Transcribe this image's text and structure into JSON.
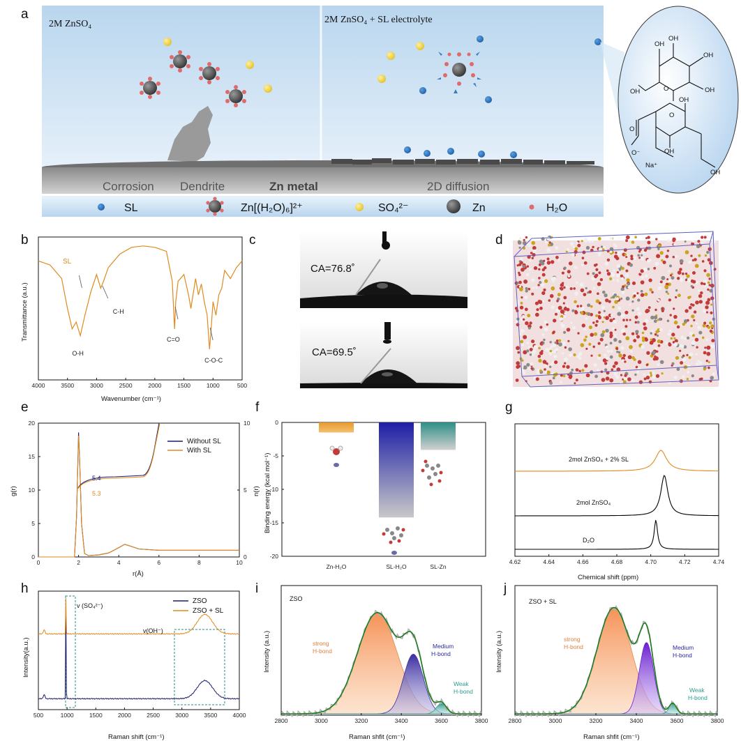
{
  "panel_labels": {
    "a": "a",
    "b": "b",
    "c": "c",
    "d": "d",
    "e": "e",
    "f": "f",
    "g": "g",
    "h": "h",
    "i": "i",
    "j": "j"
  },
  "panel_a": {
    "left_title": "2M ZnSO₄",
    "right_title": "2M ZnSO₄ +  SL electrolyte",
    "labels": {
      "corrosion": "Corrosion",
      "dendrite": "Dendrite",
      "zn_metal": "Zn metal",
      "diffusion": "2D diffusion"
    },
    "legend": [
      {
        "label": "SL",
        "icon": "sl-molecule"
      },
      {
        "label": "Zn[(H₂O)₆]²⁺",
        "icon": "hydrated-zinc"
      },
      {
        "label": "SO₄²⁻",
        "icon": "sulfate-ion"
      },
      {
        "label": "Zn",
        "icon": "zinc-ion"
      },
      {
        "label": "H₂O",
        "icon": "water-molecule"
      }
    ],
    "structure_labels": {
      "oh1": "OH",
      "oh2": "OH",
      "oh3": "OH",
      "oh4": "OH",
      "oh5": "OH",
      "oh6": "OH",
      "oh7": "OH",
      "oh8": "OH",
      "o_ring1": "O",
      "o_ring2": "O",
      "o_minus": "O⁻",
      "o_carbonyl": "O",
      "na": "Na⁺"
    }
  },
  "chart_data": [
    {
      "id": "b",
      "type": "line",
      "title": "",
      "legend": [
        "SL"
      ],
      "xlabel": "Wavenumber (cm⁻¹)",
      "ylabel": "Transmittance (a.u.)",
      "xlim": [
        4000,
        500
      ],
      "xticks": [
        4000,
        3500,
        3000,
        2500,
        2000,
        1500,
        1000,
        500
      ],
      "series": [
        {
          "name": "SL",
          "x": [
            4000,
            3800,
            3600,
            3500,
            3420,
            3350,
            3280,
            3200,
            3100,
            3000,
            2930,
            2880,
            2800,
            2600,
            2400,
            2200,
            2000,
            1800,
            1700,
            1660,
            1640,
            1600,
            1500,
            1420,
            1380,
            1300,
            1250,
            1200,
            1150,
            1100,
            1060,
            1040,
            1000,
            950,
            900,
            850,
            800,
            700,
            600,
            500
          ],
          "y": [
            0.85,
            0.82,
            0.72,
            0.5,
            0.35,
            0.4,
            0.3,
            0.45,
            0.62,
            0.75,
            0.65,
            0.7,
            0.8,
            0.9,
            0.95,
            0.96,
            0.95,
            0.92,
            0.7,
            0.35,
            0.55,
            0.7,
            0.75,
            0.6,
            0.5,
            0.72,
            0.6,
            0.68,
            0.55,
            0.45,
            0.2,
            0.3,
            0.55,
            0.45,
            0.6,
            0.65,
            0.78,
            0.72,
            0.8,
            0.85
          ]
        }
      ],
      "annotations": [
        {
          "label": "O-H",
          "x": 3300
        },
        {
          "label": "C-H",
          "x": 2900
        },
        {
          "label": "C=O",
          "x": 1650
        },
        {
          "label": "C-O-C",
          "x": 1050
        }
      ]
    },
    {
      "id": "e",
      "type": "line",
      "xlabel": "r(Å)",
      "ylabel": "g(r)",
      "ylabel_right": "n(r)",
      "xlim": [
        0,
        10
      ],
      "ylim": [
        0,
        20
      ],
      "ylim_right": [
        0,
        10
      ],
      "xticks": [
        0,
        2,
        4,
        6,
        8,
        10
      ],
      "yticks": [
        0,
        5,
        10,
        15,
        20
      ],
      "yticks_right": [
        0,
        5,
        10
      ],
      "series": [
        {
          "name": "Without SL",
          "color": "#1a1a6e",
          "x": [
            0,
            1.8,
            1.9,
            2.0,
            2.05,
            2.15,
            2.3,
            2.5,
            3.0,
            3.5,
            4.0,
            4.3,
            4.6,
            5.0,
            6.0,
            7.0,
            8.0,
            9.0,
            10.0
          ],
          "y": [
            0,
            0,
            6,
            18.6,
            15,
            5,
            0.5,
            0.2,
            0.3,
            0.6,
            1.4,
            1.9,
            1.6,
            1.2,
            1.0,
            1.0,
            1.0,
            1.0,
            1.0
          ]
        },
        {
          "name": "With SL",
          "color": "#e08a1e",
          "x": [
            0,
            1.8,
            1.9,
            2.0,
            2.05,
            2.15,
            2.3,
            2.5,
            3.0,
            3.5,
            4.0,
            4.3,
            4.6,
            5.0,
            6.0,
            7.0,
            8.0,
            9.0,
            10.0
          ],
          "y": [
            0,
            0,
            6,
            18.1,
            15,
            5,
            0.5,
            0.2,
            0.3,
            0.6,
            1.4,
            1.9,
            1.6,
            1.2,
            1.0,
            1.0,
            1.0,
            1.0,
            1.0
          ]
        }
      ],
      "coordination": {
        "without_sl": 5.4,
        "with_sl": 5.3,
        "without_label": "5.4",
        "with_label": "5.3"
      }
    },
    {
      "id": "f",
      "type": "bar",
      "ylabel": "Binding energy (kcal mol⁻¹)",
      "categories": [
        "Zn-H₂O",
        "SL-H₂O",
        "SL-Zn"
      ],
      "values": [
        -1.5,
        -14.2,
        -4.1
      ],
      "colors": [
        "#e89a2c",
        "#2a2aa8",
        "#2d8f87"
      ],
      "ylim": [
        -20,
        0
      ],
      "yticks": [
        0,
        -5,
        -10,
        -15,
        -20
      ]
    },
    {
      "id": "g",
      "type": "line",
      "xlabel": "Chemical shift (ppm)",
      "xlim": [
        4.62,
        4.74
      ],
      "xticks": [
        4.62,
        4.64,
        4.66,
        4.68,
        4.7,
        4.72,
        4.74
      ],
      "series": [
        {
          "name": "2mol ZnSO₄ + 2% SL",
          "color": "#e08a1e",
          "peak": 4.706
        },
        {
          "name": "2mol ZnSO₄",
          "color": "#000000",
          "peak": 4.708
        },
        {
          "name": "D₂O",
          "color": "#000000",
          "peak": 4.703
        }
      ]
    },
    {
      "id": "h",
      "type": "line",
      "xlabel": "Raman shift (cm⁻¹)",
      "ylabel": "Intensity(a.u.)",
      "xlim": [
        500,
        4000
      ],
      "xticks": [
        500,
        1000,
        1500,
        2000,
        2500,
        3000,
        3500,
        4000
      ],
      "series": [
        {
          "name": "ZSO",
          "color": "#1a1a6e"
        },
        {
          "name": "ZSO + SL",
          "color": "#e08a1e"
        }
      ],
      "annotations": [
        {
          "label": "v (SO₄²⁻)",
          "x": 980
        },
        {
          "label": "v(OH⁻)",
          "x": 3400
        }
      ]
    },
    {
      "id": "i",
      "type": "area",
      "title": "ZSO",
      "xlabel": "Raman shfit (cm⁻¹)",
      "ylabel": "Intensity (a.u.)",
      "xlim": [
        2800,
        3800
      ],
      "xticks": [
        2800,
        3000,
        3200,
        3400,
        3600,
        3800
      ],
      "components": [
        {
          "name": "strong H-bond",
          "line1": "strong",
          "line2": "H-bond",
          "center": 3280,
          "width": 140,
          "height": 0.78,
          "color": "#f08a4b"
        },
        {
          "name": "Medium H-bond",
          "line1": "Medium",
          "line2": "H-bond",
          "center": 3460,
          "width": 70,
          "height": 0.46,
          "color": "#3a2fa0"
        },
        {
          "name": "Weak H-bond",
          "line1": "Weak",
          "line2": "H-bond",
          "center": 3600,
          "width": 35,
          "height": 0.08,
          "color": "#2a9d8f"
        }
      ]
    },
    {
      "id": "j",
      "type": "area",
      "title": "ZSO + SL",
      "xlabel": "Raman shfit (cm⁻¹)",
      "ylabel": "Intensity (a.u.)",
      "xlim": [
        2800,
        3800
      ],
      "xticks": [
        2800,
        3000,
        3200,
        3400,
        3600,
        3800
      ],
      "components": [
        {
          "name": "strong H-bond",
          "line1": "strong",
          "line2": "H-bond",
          "center": 3290,
          "width": 120,
          "height": 0.82,
          "color": "#f08a4b"
        },
        {
          "name": "Medium H-bond",
          "line1": "Medium",
          "line2": "H-bond",
          "center": 3450,
          "width": 50,
          "height": 0.55,
          "color": "#6a1fd0"
        },
        {
          "name": "Weak H-bond",
          "line1": "Weak",
          "line2": "H-bond",
          "center": 3580,
          "width": 25,
          "height": 0.08,
          "color": "#2a9d8f"
        }
      ]
    }
  ],
  "panel_c": {
    "ca_top": "CA=76.8˚",
    "ca_bottom": "CA=69.5˚"
  },
  "colors": {
    "orange": "#e08a1e",
    "navy": "#1a1a6e",
    "green": "#1f7a1f",
    "teal": "#2d8f87"
  }
}
